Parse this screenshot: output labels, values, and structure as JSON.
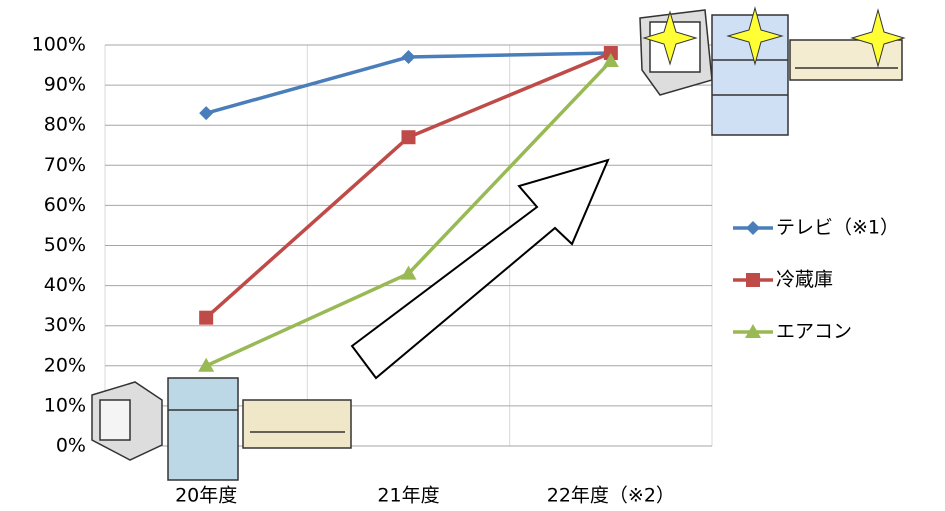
{
  "chart_data": {
    "type": "line",
    "categories": [
      "20年度",
      "21年度",
      "22年度（※2）"
    ],
    "series": [
      {
        "name": "テレビ（※1）",
        "color": "#4a7ebb",
        "marker": "diamond",
        "values": [
          83,
          97,
          98
        ]
      },
      {
        "name": "冷蔵庫",
        "color": "#be4b48",
        "marker": "square",
        "values": [
          32,
          77,
          98
        ]
      },
      {
        "name": "エアコン",
        "color": "#98b954",
        "marker": "triangle",
        "values": [
          20,
          43,
          96
        ]
      }
    ],
    "ylim": [
      0,
      100
    ],
    "yticks": [
      {
        "value": 0,
        "label": "0%"
      },
      {
        "value": 10,
        "label": "10%"
      },
      {
        "value": 20,
        "label": "20%"
      },
      {
        "value": 30,
        "label": "30%"
      },
      {
        "value": 40,
        "label": "40%"
      },
      {
        "value": 50,
        "label": "50%"
      },
      {
        "value": 60,
        "label": "60%"
      },
      {
        "value": 70,
        "label": "70%"
      },
      {
        "value": 80,
        "label": "80%"
      },
      {
        "value": 90,
        "label": "90%"
      },
      {
        "value": 100,
        "label": "100%"
      }
    ],
    "grid": true,
    "legend": "right"
  }
}
